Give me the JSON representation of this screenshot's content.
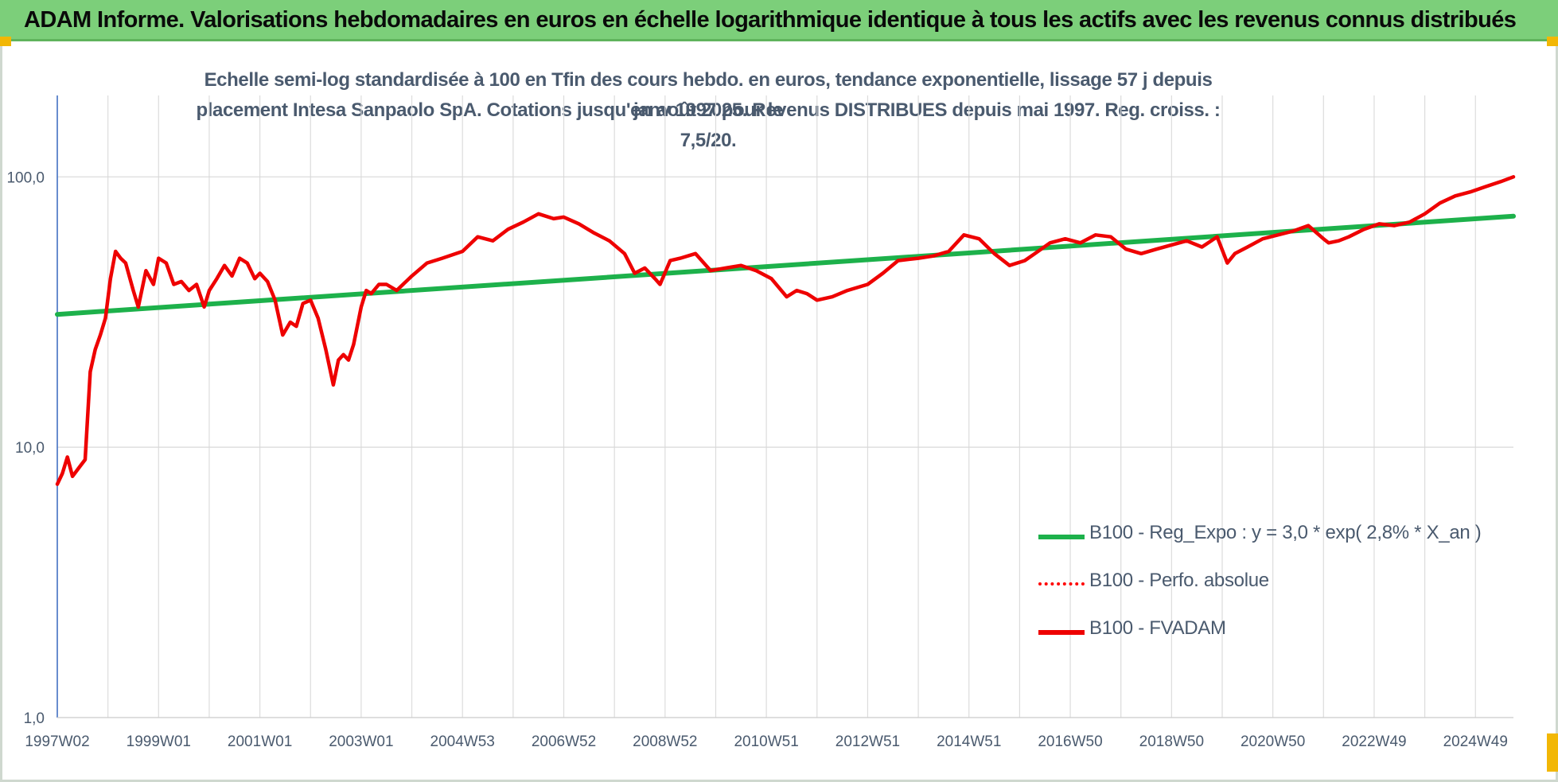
{
  "banner": {
    "title": "ADAM Informe. Valorisations hebdomadaires en euros en échelle logarithmique identique à tous les actifs avec les revenus connus distribués"
  },
  "chart_data": {
    "type": "line",
    "title_lines": [
      "Echelle semi-log standardisée à 100 en Tfin des cours hebdo. en euros, tendance exponentielle, lissage 57 j depuis janv 1997 pour le",
      "placement Intesa Sanpaolo SpA. Cotations jusqu'en août 2025. Revenus DISTRIBUES depuis mai 1997. Reg. croiss. : 7,5/20."
    ],
    "y_scale": "log",
    "ylim": [
      1,
      200
    ],
    "y_ticks": [
      {
        "value": 1,
        "label": "1,0"
      },
      {
        "value": 10,
        "label": "10,0"
      },
      {
        "value": 100,
        "label": "100,0"
      }
    ],
    "xlim": [
      1997.0,
      2025.75
    ],
    "x_ticks": [
      {
        "value": 1997.0,
        "label": "1997W02"
      },
      {
        "value": 1999.0,
        "label": "1999W01"
      },
      {
        "value": 2001.0,
        "label": "2001W01"
      },
      {
        "value": 2003.0,
        "label": "2003W01"
      },
      {
        "value": 2005.0,
        "label": "2004W53"
      },
      {
        "value": 2007.0,
        "label": "2006W52"
      },
      {
        "value": 2009.0,
        "label": "2008W52"
      },
      {
        "value": 2011.0,
        "label": "2010W51"
      },
      {
        "value": 2013.0,
        "label": "2012W51"
      },
      {
        "value": 2015.0,
        "label": "2014W51"
      },
      {
        "value": 2017.0,
        "label": "2016W50"
      },
      {
        "value": 2019.0,
        "label": "2018W50"
      },
      {
        "value": 2021.0,
        "label": "2020W50"
      },
      {
        "value": 2023.0,
        "label": "2022W49"
      },
      {
        "value": 2025.0,
        "label": "2024W49"
      }
    ],
    "grid": true,
    "legend_position": "bottom-right",
    "series": [
      {
        "name": "B100 - Reg_Expo : y = 3,0 * exp( 2,8% *  X_an )",
        "color": "#1db14b",
        "style": "solid",
        "x": [
          1997.0,
          2025.75
        ],
        "y": [
          31.0,
          71.5
        ]
      },
      {
        "name": "B100 - Perfo. absolue",
        "color": "#ff0000",
        "style": "dotted",
        "x": [],
        "y": []
      },
      {
        "name": "B100 - FVADAM",
        "color": "#ee0000",
        "style": "solid",
        "x": [
          1997.0,
          1997.1,
          1997.2,
          1997.3,
          1997.45,
          1997.55,
          1997.65,
          1997.75,
          1997.85,
          1997.95,
          1998.05,
          1998.15,
          1998.25,
          1998.35,
          1998.5,
          1998.6,
          1998.75,
          1998.9,
          1999.0,
          1999.15,
          1999.3,
          1999.45,
          1999.6,
          1999.75,
          1999.9,
          2000.0,
          2000.15,
          2000.3,
          2000.45,
          2000.6,
          2000.75,
          2000.9,
          2001.0,
          2001.15,
          2001.3,
          2001.45,
          2001.6,
          2001.72,
          2001.85,
          2002.0,
          2002.15,
          2002.3,
          2002.45,
          2002.55,
          2002.65,
          2002.75,
          2002.85,
          2003.0,
          2003.1,
          2003.2,
          2003.35,
          2003.5,
          2003.7,
          2004.0,
          2004.3,
          2004.6,
          2005.0,
          2005.3,
          2005.6,
          2005.9,
          2006.2,
          2006.5,
          2006.8,
          2007.0,
          2007.3,
          2007.6,
          2007.9,
          2008.2,
          2008.4,
          2008.6,
          2008.8,
          2008.9,
          2009.1,
          2009.3,
          2009.6,
          2009.9,
          2010.2,
          2010.5,
          2010.8,
          2011.1,
          2011.4,
          2011.6,
          2011.8,
          2012.0,
          2012.3,
          2012.6,
          2013.0,
          2013.3,
          2013.6,
          2014.0,
          2014.3,
          2014.6,
          2014.9,
          2015.2,
          2015.5,
          2015.8,
          2016.1,
          2016.3,
          2016.6,
          2016.9,
          2017.2,
          2017.5,
          2017.8,
          2018.1,
          2018.4,
          2018.7,
          2019.0,
          2019.3,
          2019.6,
          2019.9,
          2020.1,
          2020.25,
          2020.5,
          2020.8,
          2021.1,
          2021.4,
          2021.7,
          2022.0,
          2022.1,
          2022.3,
          2022.5,
          2022.8,
          2023.1,
          2023.4,
          2023.7,
          2024.0,
          2024.3,
          2024.6,
          2024.9,
          2025.2,
          2025.5,
          2025.75
        ],
        "y": [
          7.3,
          8.0,
          9.2,
          7.8,
          8.5,
          9.0,
          19.0,
          23.0,
          26.0,
          30.0,
          42.0,
          53.0,
          50.0,
          48.0,
          38.0,
          33.0,
          45.0,
          40.0,
          50.0,
          48.0,
          40.0,
          41.0,
          38.0,
          40.0,
          33.0,
          38.0,
          42.0,
          47.0,
          43.0,
          50.0,
          48.0,
          42.0,
          44.0,
          41.0,
          35.0,
          26.0,
          29.0,
          28.0,
          34.0,
          35.0,
          30.0,
          23.0,
          17.0,
          21.0,
          22.0,
          21.0,
          24.0,
          33.0,
          38.0,
          37.0,
          40.0,
          40.0,
          38.0,
          43.0,
          48.0,
          50.0,
          53.0,
          60.0,
          58.0,
          64.0,
          68.0,
          73.0,
          70.0,
          71.0,
          67.0,
          62.0,
          58.0,
          52.0,
          44.0,
          46.0,
          42.0,
          40.0,
          49.0,
          50.0,
          52.0,
          45.0,
          46.0,
          47.0,
          45.0,
          42.0,
          36.0,
          38.0,
          37.0,
          35.0,
          36.0,
          38.0,
          40.0,
          44.0,
          49.0,
          50.0,
          51.0,
          53.0,
          61.0,
          59.0,
          52.0,
          47.0,
          49.0,
          52.0,
          57.0,
          59.0,
          57.0,
          61.0,
          60.0,
          54.0,
          52.0,
          54.0,
          56.0,
          58.0,
          55.0,
          60.0,
          48.0,
          52.0,
          55.0,
          59.0,
          61.0,
          63.0,
          66.0,
          59.0,
          57.0,
          58.0,
          60.0,
          64.0,
          67.0,
          66.0,
          68.0,
          73.0,
          80.0,
          85.0,
          88.0,
          92.0,
          96.0,
          100.0
        ]
      }
    ]
  }
}
